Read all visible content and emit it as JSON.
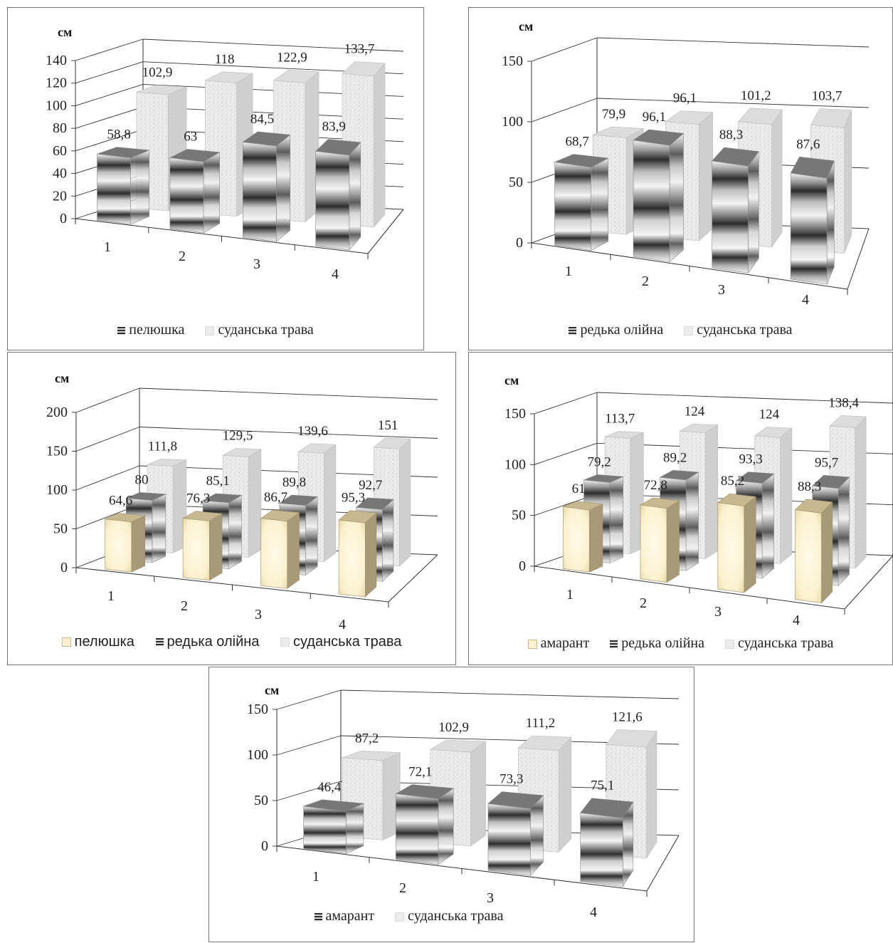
{
  "chart_data": [
    {
      "type": "bar",
      "unit": "см",
      "categories": [
        "1",
        "2",
        "3",
        "4"
      ],
      "yticks": [
        "0",
        "20",
        "40",
        "60",
        "80",
        "100",
        "120",
        "140"
      ],
      "ylim": [
        0,
        140
      ],
      "series": [
        {
          "name": "пелюшка",
          "values": [
            58.8,
            63,
            84.5,
            83.9
          ],
          "labels": [
            "58,8",
            "63",
            "84,5",
            "83,9"
          ],
          "style": "striped"
        },
        {
          "name": "суданська трава",
          "values": [
            102.9,
            118,
            122.9,
            133.7
          ],
          "labels": [
            "102,9",
            "118",
            "122,9",
            "133,7"
          ],
          "style": "speckled"
        }
      ]
    },
    {
      "type": "bar",
      "unit": "см",
      "categories": [
        "1",
        "2",
        "3",
        "4"
      ],
      "yticks": [
        "0",
        "50",
        "100",
        "150"
      ],
      "ylim": [
        0,
        150
      ],
      "series": [
        {
          "name": "редька олійна",
          "values": [
            68.7,
            96.1,
            88.3,
            87.6
          ],
          "labels": [
            "68,7",
            "96,1",
            "88,3",
            "87,6"
          ],
          "style": "striped"
        },
        {
          "name": "суданська трава",
          "values": [
            79.9,
            96.1,
            101.2,
            103.7
          ],
          "labels": [
            "79,9",
            "96,1",
            "101,2",
            "103,7"
          ],
          "style": "speckled"
        }
      ]
    },
    {
      "type": "bar",
      "unit": "см",
      "categories": [
        "1",
        "2",
        "3",
        "4"
      ],
      "yticks": [
        "0",
        "50",
        "100",
        "150",
        "200"
      ],
      "ylim": [
        0,
        200
      ],
      "series": [
        {
          "name": "пелюшка",
          "values": [
            64.6,
            76.3,
            86.7,
            95.3
          ],
          "labels": [
            "64,6",
            "76,3",
            "86,7",
            "95,3"
          ],
          "style": "cream"
        },
        {
          "name": "редька олійна",
          "values": [
            80,
            85.1,
            89.8,
            92.7
          ],
          "labels": [
            "80",
            "85,1",
            "89,8",
            "92,7"
          ],
          "style": "striped"
        },
        {
          "name": "суданська трава",
          "values": [
            111.8,
            129.5,
            139.6,
            151
          ],
          "labels": [
            "111,8",
            "129,5",
            "139,6",
            "151"
          ],
          "style": "speckled"
        }
      ]
    },
    {
      "type": "bar",
      "unit": "см",
      "categories": [
        "1",
        "2",
        "3",
        "4"
      ],
      "yticks": [
        "0",
        "50",
        "100",
        "150"
      ],
      "ylim": [
        0,
        150
      ],
      "series": [
        {
          "name": "амарант",
          "values": [
            61,
            72.8,
            85.2,
            88.3
          ],
          "labels": [
            "61",
            "72,8",
            "85,2",
            "88,3"
          ],
          "style": "cream"
        },
        {
          "name": "редька олійна",
          "values": [
            79.2,
            89.2,
            93.3,
            95.7
          ],
          "labels": [
            "79,2",
            "89,2",
            "93,3",
            "95,7"
          ],
          "style": "striped"
        },
        {
          "name": "суданська трава",
          "values": [
            113.7,
            124,
            124,
            138.4
          ],
          "labels": [
            "113,7",
            "124",
            "124",
            "138,4"
          ],
          "style": "speckled"
        }
      ]
    },
    {
      "type": "bar",
      "unit": "см",
      "categories": [
        "1",
        "2",
        "3",
        "4"
      ],
      "yticks": [
        "0",
        "50",
        "100",
        "150"
      ],
      "ylim": [
        0,
        150
      ],
      "series": [
        {
          "name": "амарант",
          "values": [
            46.4,
            72.1,
            73.3,
            75.1
          ],
          "labels": [
            "46,4",
            "72,1",
            "73,3",
            "75,1"
          ],
          "style": "striped"
        },
        {
          "name": "суданська трава",
          "values": [
            87.2,
            102.9,
            111.2,
            121.6
          ],
          "labels": [
            "87,2",
            "102,9",
            "111,2",
            "121,6"
          ],
          "style": "speckled"
        }
      ]
    }
  ],
  "colors": {
    "cream_front": "#fbf1cf",
    "cream_side": "#a89a78",
    "cream_top": "#c8b890",
    "speckled_front": "#ececec",
    "speckled_side": "#cfcfcf",
    "stripe_dark": "#2c2c2c",
    "stripe_light": "#f4f4f4",
    "grid": "#333333"
  }
}
